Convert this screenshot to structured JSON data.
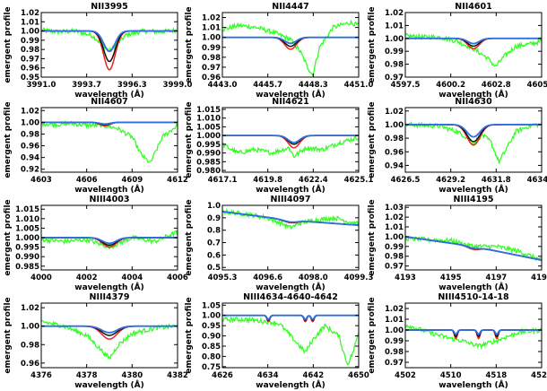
{
  "figure": {
    "xlabel": "wavelength (Å)",
    "ylabel": "emergent profile"
  },
  "colors": {
    "observed": "#33ff22",
    "model_blue": "#2f6fe0",
    "model_black": "#111111",
    "model_red": "#e8231e",
    "frame": "#000000"
  },
  "chart_data": [
    {
      "type": "line",
      "title": "NII3995",
      "xlabel": "wavelength (Å)",
      "ylabel": "emergent profile",
      "xlim": [
        3991.0,
        3999.0
      ],
      "ylim": [
        0.95,
        1.02
      ],
      "xticks": [
        "3991.0",
        "3993.7",
        "3996.3",
        "3999.0"
      ],
      "yticks": [
        "1.02",
        "1.01",
        "1.00",
        "0.99",
        "0.98",
        "0.97",
        "0.96",
        "0.95"
      ],
      "center": 3995.0,
      "cont": 1.0,
      "line_depths": {
        "red": 0.042,
        "black": 0.033,
        "blue": 0.022
      },
      "fwhm": 0.8,
      "series": [
        {
          "name": "observed",
          "x": [
            3991.0,
            3992.0,
            3993.0,
            3994.0,
            3994.6,
            3995.0,
            3995.4,
            3996.0,
            3997.0,
            3998.0,
            3999.0
          ],
          "y": [
            1.001,
            0.999,
            1.0,
            0.995,
            0.985,
            0.978,
            0.985,
            0.996,
            1.0,
            0.999,
            1.001
          ]
        }
      ]
    },
    {
      "type": "line",
      "title": "NII4447",
      "xlabel": "wavelength (Å)",
      "ylabel": "emergent profile",
      "xlim": [
        4443.0,
        4451.0
      ],
      "ylim": [
        0.96,
        1.025
      ],
      "xticks": [
        "4443.0",
        "4445.7",
        "4448.3",
        "4451.0"
      ],
      "yticks": [
        "1.02",
        "1.01",
        "1.00",
        "0.99",
        "0.98",
        "0.97",
        "0.96"
      ],
      "center": 4447.0,
      "cont": 1.0,
      "line_depths": {
        "red": 0.012,
        "black": 0.009,
        "blue": 0.006
      },
      "fwhm": 0.8,
      "series": [
        {
          "name": "observed",
          "x": [
            4443.0,
            4444.0,
            4445.0,
            4446.0,
            4447.0,
            4447.6,
            4448.0,
            4448.3,
            4448.7,
            4449.5,
            4450.5,
            4451.0
          ],
          "y": [
            1.008,
            1.012,
            1.01,
            1.005,
            0.998,
            0.985,
            0.97,
            0.962,
            0.99,
            1.01,
            1.015,
            1.012
          ]
        }
      ]
    },
    {
      "type": "line",
      "title": "NII4601",
      "xlabel": "wavelength (Å)",
      "ylabel": "emergent profile",
      "xlim": [
        4597.5,
        4605.5
      ],
      "ylim": [
        0.97,
        1.02
      ],
      "xticks": [
        "4597.5",
        "4600.2",
        "4602.8",
        "4605.5"
      ],
      "yticks": [
        "1.02",
        "1.01",
        "1.00",
        "0.99",
        "0.98",
        "0.97"
      ],
      "center": 4601.5,
      "cont": 1.0,
      "line_depths": {
        "red": 0.008,
        "black": 0.006,
        "blue": 0.004
      },
      "fwhm": 0.8,
      "series": [
        {
          "name": "observed",
          "x": [
            4597.5,
            4598.5,
            4599.5,
            4600.5,
            4601.5,
            4602.3,
            4602.8,
            4603.3,
            4604.0,
            4605.0,
            4605.5
          ],
          "y": [
            1.002,
            1.001,
            1.001,
            0.998,
            0.992,
            0.985,
            0.978,
            0.986,
            0.994,
            0.996,
            0.998
          ]
        }
      ]
    },
    {
      "type": "line",
      "title": "NII4607",
      "xlabel": "wavelength (Å)",
      "ylabel": "emergent profile",
      "xlim": [
        4603.0,
        4612.0
      ],
      "ylim": [
        0.915,
        1.025
      ],
      "xticks": [
        "4603",
        "4606",
        "4609",
        "4612"
      ],
      "yticks": [
        "1.02",
        "1.00",
        "0.98",
        "0.96",
        "0.94",
        "0.92"
      ],
      "center": 4607.2,
      "cont": 1.0,
      "line_depths": {
        "red": 0.006,
        "black": 0.004,
        "blue": 0.003
      },
      "fwhm": 0.8,
      "series": [
        {
          "name": "observed",
          "x": [
            4603.0,
            4604.0,
            4605.0,
            4606.0,
            4607.0,
            4608.0,
            4609.0,
            4609.6,
            4610.2,
            4611.0,
            4612.0
          ],
          "y": [
            0.998,
            0.996,
            0.998,
            0.995,
            0.995,
            0.99,
            0.975,
            0.945,
            0.93,
            0.975,
            0.995
          ]
        }
      ]
    },
    {
      "type": "line",
      "title": "NII4621",
      "xlabel": "wavelength (Å)",
      "ylabel": "emergent profile",
      "xlim": [
        4617.1,
        4625.1
      ],
      "ylim": [
        0.979,
        1.016
      ],
      "xticks": [
        "4617.1",
        "4619.8",
        "4622.4",
        "4625.1"
      ],
      "yticks": [
        "1.015",
        "1.010",
        "1.005",
        "1.000",
        "0.995",
        "0.990",
        "0.985",
        "0.980"
      ],
      "center": 4621.3,
      "cont": 1.0,
      "line_depths": {
        "red": 0.007,
        "black": 0.005,
        "blue": 0.004
      },
      "fwhm": 0.8,
      "series": [
        {
          "name": "observed",
          "x": [
            4617.1,
            4618.0,
            4619.0,
            4620.0,
            4621.0,
            4621.3,
            4622.0,
            4623.0,
            4624.0,
            4625.1
          ],
          "y": [
            0.995,
            0.99,
            0.992,
            0.99,
            0.993,
            0.988,
            0.993,
            0.992,
            0.996,
            0.999
          ]
        }
      ]
    },
    {
      "type": "line",
      "title": "NII4630",
      "xlabel": "wavelength (Å)",
      "ylabel": "emergent profile",
      "xlim": [
        4626.5,
        4634.5
      ],
      "ylim": [
        0.93,
        1.025
      ],
      "xticks": [
        "4626.5",
        "4629.2",
        "4631.8",
        "4634.5"
      ],
      "yticks": [
        "1.02",
        "1.00",
        "0.98",
        "0.96",
        "0.94"
      ],
      "center": 4630.5,
      "cont": 1.0,
      "line_depths": {
        "red": 0.03,
        "black": 0.025,
        "blue": 0.018
      },
      "fwhm": 0.9,
      "series": [
        {
          "name": "observed",
          "x": [
            4626.5,
            4627.5,
            4628.5,
            4629.5,
            4630.2,
            4630.5,
            4631.0,
            4631.5,
            4632.0,
            4633.0,
            4634.0,
            4634.5
          ],
          "y": [
            1.0,
            0.999,
            0.998,
            0.99,
            0.98,
            0.973,
            0.985,
            0.975,
            0.945,
            0.99,
            1.0,
            1.0
          ]
        }
      ]
    },
    {
      "type": "line",
      "title": "NIII4003",
      "xlabel": "wavelength (Å)",
      "ylabel": "emergent profile",
      "xlim": [
        4000.0,
        4006.0
      ],
      "ylim": [
        0.983,
        1.017
      ],
      "xticks": [
        "4000",
        "4002",
        "4004",
        "4006"
      ],
      "yticks": [
        "1.015",
        "1.010",
        "1.005",
        "1.000",
        "0.995",
        "0.990",
        "0.985"
      ],
      "center": 4003.0,
      "cont": 1.0,
      "line_depths": {
        "red": 0.005,
        "black": 0.004,
        "blue": 0.003
      },
      "fwhm": 0.7,
      "series": [
        {
          "name": "observed",
          "x": [
            4000.0,
            4001.0,
            4002.0,
            4003.0,
            4004.0,
            4005.0,
            4006.0
          ],
          "y": [
            0.999,
            0.998,
            0.999,
            0.995,
            1.0,
            0.998,
            1.003
          ]
        }
      ]
    },
    {
      "type": "line",
      "title": "NIII4097",
      "xlabel": "wavelength (Å)",
      "ylabel": "emergent profile",
      "xlim": [
        4095.3,
        4099.3
      ],
      "ylim": [
        0.48,
        1.0
      ],
      "xticks": [
        "4095.3",
        "4096.6",
        "4098.0",
        "4099.3"
      ],
      "yticks": [
        "1.0",
        "0.9",
        "0.8",
        "0.7",
        "0.6",
        "0.5"
      ],
      "center": 4097.3,
      "cont_slope": [
        0.95,
        0.88,
        0.84
      ],
      "line_depths": {
        "red": 0.02,
        "black": 0.017,
        "blue": 0.014
      },
      "fwhm": 0.5,
      "series": [
        {
          "name": "observed",
          "x": [
            4095.3,
            4096.0,
            4096.6,
            4097.0,
            4097.3,
            4097.6,
            4098.0,
            4098.6,
            4099.0,
            4099.3
          ],
          "y": [
            0.95,
            0.93,
            0.9,
            0.86,
            0.82,
            0.86,
            0.88,
            0.9,
            0.87,
            0.85
          ]
        }
      ]
    },
    {
      "type": "line",
      "title": "NIII4195",
      "xlabel": "wavelength (Å)",
      "ylabel": "emergent profile",
      "xlim": [
        4193.0,
        4199.0
      ],
      "ylim": [
        0.966,
        1.032
      ],
      "xticks": [
        "4193",
        "4195",
        "4197",
        "4199"
      ],
      "yticks": [
        "1.03",
        "1.02",
        "1.01",
        "1.00",
        "0.99",
        "0.98",
        "0.97"
      ],
      "center": 4196.0,
      "cont_slope": [
        1.0,
        0.99,
        0.976
      ],
      "line_depths": {
        "red": 0.003,
        "black": 0.002,
        "blue": 0.002
      },
      "fwhm": 0.6,
      "series": [
        {
          "name": "observed",
          "x": [
            4193.0,
            4194.0,
            4195.0,
            4196.0,
            4197.0,
            4198.0,
            4199.0
          ],
          "y": [
            0.998,
            0.997,
            0.996,
            0.99,
            0.99,
            0.985,
            0.976
          ]
        }
      ]
    },
    {
      "type": "line",
      "title": "NIII4379",
      "xlabel": "wavelength (Å)",
      "ylabel": "emergent profile",
      "xlim": [
        4376.0,
        4382.0
      ],
      "ylim": [
        0.955,
        1.025
      ],
      "xticks": [
        "4376",
        "4378",
        "4380",
        "4382"
      ],
      "yticks": [
        "1.02",
        "1.00",
        "0.98",
        "0.96"
      ],
      "yticks_pos": [
        1.02,
        1.01,
        1.0,
        0.99,
        0.98,
        0.97,
        0.96
      ],
      "yticks_labels": [
        "1.02",
        "1.01",
        "1.00",
        "0.99",
        "0.98",
        "0.97",
        "0.96"
      ],
      "center": 4379.0,
      "cont": 1.0,
      "line_depths": {
        "red": 0.014,
        "black": 0.01,
        "blue": 0.007
      },
      "fwhm": 0.8,
      "series": [
        {
          "name": "observed",
          "x": [
            4376.0,
            4377.0,
            4378.0,
            4378.6,
            4379.0,
            4379.4,
            4380.0,
            4381.0,
            4382.0
          ],
          "y": [
            1.005,
            1.0,
            0.99,
            0.975,
            0.965,
            0.98,
            0.992,
            0.998,
            1.0
          ]
        }
      ]
    },
    {
      "type": "line",
      "title": "NIII4634-4640-4642",
      "xlabel": "wavelength (Å)",
      "ylabel": "emergent profile",
      "xlim": [
        4626.0,
        4650.0
      ],
      "ylim": [
        0.745,
        1.06
      ],
      "xticks": [
        "4626",
        "4634",
        "4642",
        "4650"
      ],
      "yticks": [
        "1.05",
        "1.00",
        "0.95",
        "0.90",
        "0.85",
        "0.80",
        "0.75"
      ],
      "centers": [
        4634.1,
        4640.6,
        4641.9
      ],
      "cont": 1.0,
      "line_depths": {
        "red": 0.03,
        "black": 0.025,
        "blue": 0.02
      },
      "fwhm": 0.6,
      "series": [
        {
          "name": "observed",
          "x": [
            4626.0,
            4630.0,
            4634.0,
            4636.0,
            4638.0,
            4640.6,
            4641.9,
            4644.0,
            4646.5,
            4648.0,
            4649.0,
            4650.0
          ],
          "y": [
            0.98,
            0.98,
            0.97,
            0.96,
            0.9,
            0.82,
            0.88,
            0.95,
            0.9,
            0.76,
            0.82,
            0.92
          ]
        }
      ]
    },
    {
      "type": "line",
      "title": "NIII4510-14-18",
      "xlabel": "wavelength (Å)",
      "ylabel": "emergent profile",
      "xlim": [
        4502.0,
        4526.0
      ],
      "ylim": [
        0.965,
        1.025
      ],
      "xticks": [
        "4502",
        "4510",
        "4518",
        "4526"
      ],
      "yticks": [
        "1.02",
        "1.01",
        "1.00",
        "0.99",
        "0.98",
        "0.97"
      ],
      "centers": [
        4510.9,
        4514.9,
        4518.1
      ],
      "cont": 1.0,
      "line_depths": {
        "red": 0.008,
        "black": 0.006,
        "blue": 0.004
      },
      "fwhm": 0.6,
      "series": [
        {
          "name": "observed",
          "x": [
            4502.0,
            4506.0,
            4510.0,
            4512.0,
            4514.9,
            4518.0,
            4522.0,
            4526.0
          ],
          "y": [
            1.005,
            0.998,
            0.992,
            0.99,
            0.985,
            0.99,
            0.998,
            1.0
          ]
        }
      ]
    }
  ]
}
